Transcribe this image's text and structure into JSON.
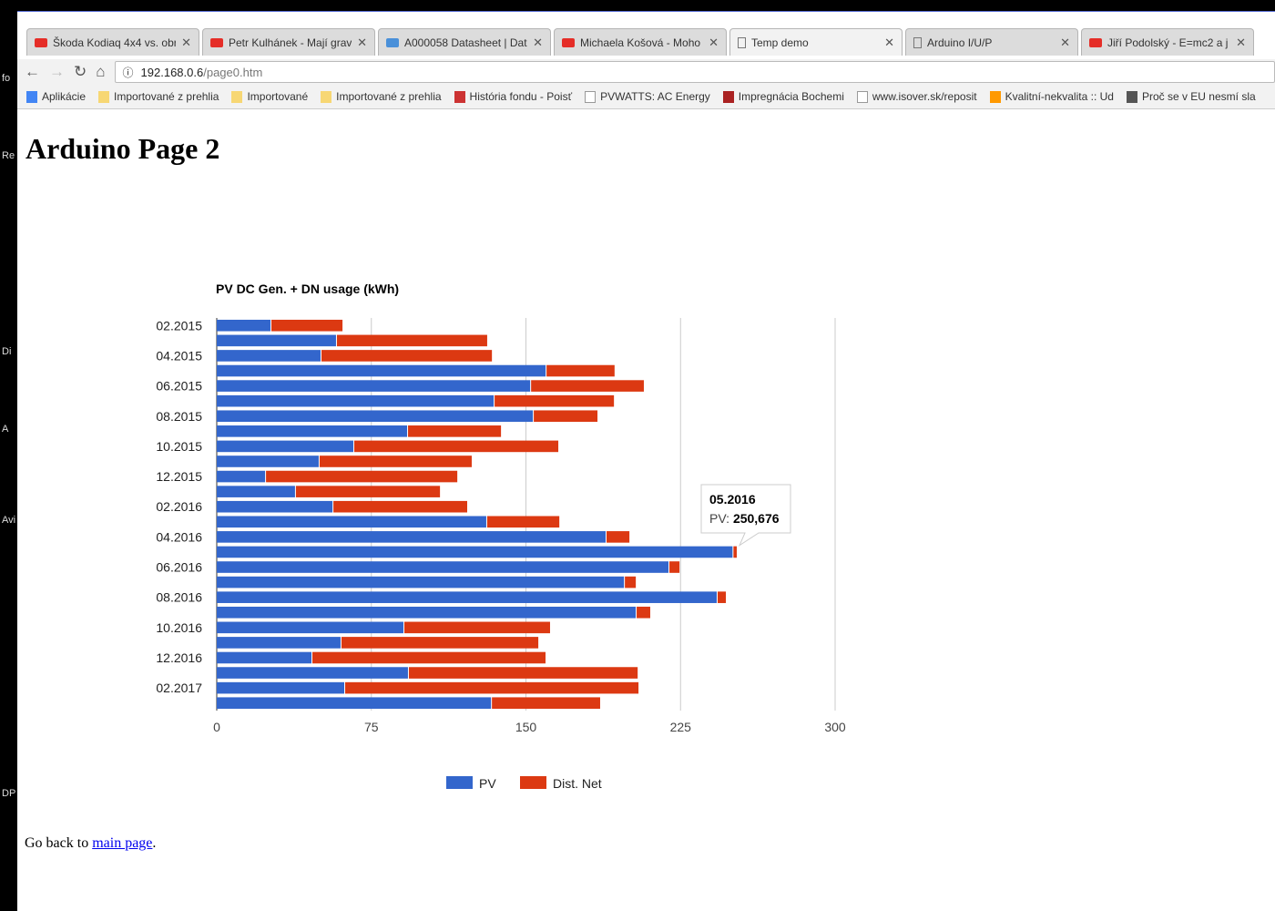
{
  "desktop_fragments": [
    "fo",
    "Re",
    "Di",
    "A",
    "Avi",
    "DP"
  ],
  "tabs": [
    {
      "title": "Škoda Kodiaq 4x4 vs. obr",
      "icon": "youtube-icon"
    },
    {
      "title": "Petr Kulhánek - Mají grav",
      "icon": "youtube-icon"
    },
    {
      "title": "A000058 Datasheet | Dat",
      "icon": "chip-icon"
    },
    {
      "title": "Michaela Košová - Moho",
      "icon": "youtube-icon"
    },
    {
      "title": "Temp demo",
      "icon": "page-icon",
      "active": true
    },
    {
      "title": "Arduino I/U/P",
      "icon": "page-icon"
    },
    {
      "title": "Jiří Podolský - E=mc2 a j",
      "icon": "youtube-icon"
    }
  ],
  "address": {
    "host": "192.168.0.6",
    "path": "/page0.htm"
  },
  "bookmarks": [
    "Aplikácie",
    "Importované z prehlia",
    "Importované",
    "Importované z prehlia",
    "História fondu - Poisť",
    "PVWATTS: AC Energy",
    "Impregnácia Bochemi",
    "www.isover.sk/reposit",
    "Kvalitní-nekvalita :: Ud",
    "Proč se v EU nesmí sla"
  ],
  "page": {
    "title": "Arduino Page 2",
    "footer_prefix": "Go back to ",
    "footer_link": "main page",
    "footer_suffix": "."
  },
  "chart_data": {
    "type": "bar",
    "orientation": "horizontal",
    "stacked": true,
    "title": "PV DC Gen. + DN usage (kWh)",
    "categories": [
      "02.2015",
      "03.2015",
      "04.2015",
      "05.2015",
      "06.2015",
      "07.2015",
      "08.2015",
      "09.2015",
      "10.2015",
      "11.2015",
      "12.2015",
      "01.2016",
      "02.2016",
      "03.2016",
      "04.2016",
      "05.2016",
      "06.2016",
      "07.2016",
      "08.2016",
      "09.2016",
      "10.2016",
      "11.2016",
      "12.2016",
      "01.2017",
      "02.2017",
      "03.2017"
    ],
    "visible_tick_labels": [
      "02.2015",
      "04.2015",
      "06.2015",
      "08.2015",
      "10.2015",
      "12.2015",
      "02.2016",
      "04.2016",
      "06.2016",
      "08.2016",
      "10.2016",
      "12.2016",
      "02.2017"
    ],
    "series": [
      {
        "name": "PV",
        "color": "#3366cc",
        "values": [
          26.5,
          58.3,
          50.8,
          160,
          152.5,
          134.8,
          153.8,
          92.8,
          66.7,
          49.9,
          23.9,
          38.4,
          56.6,
          131.2,
          189.1,
          250.676,
          219.6,
          198,
          243,
          203.7,
          91,
          60.5,
          46.4,
          93.2,
          62.3,
          133.5
        ]
      },
      {
        "name": "Dist. Net",
        "color": "#dc3912",
        "values": [
          34.5,
          72.9,
          82.7,
          33,
          54.7,
          57.9,
          30.9,
          45.1,
          99,
          73.8,
          92.8,
          69.9,
          64.9,
          35,
          11.1,
          1.6,
          4.9,
          5.3,
          4,
          6.6,
          70.7,
          95.5,
          113.1,
          111,
          142.3,
          52.5
        ]
      }
    ],
    "xlim": [
      0,
      300
    ],
    "xticks": [
      0,
      75,
      150,
      225,
      300
    ],
    "grid": true,
    "legend": "bottom",
    "tooltip": {
      "category": "05.2016",
      "label": "PV:",
      "value": "250,676"
    }
  }
}
